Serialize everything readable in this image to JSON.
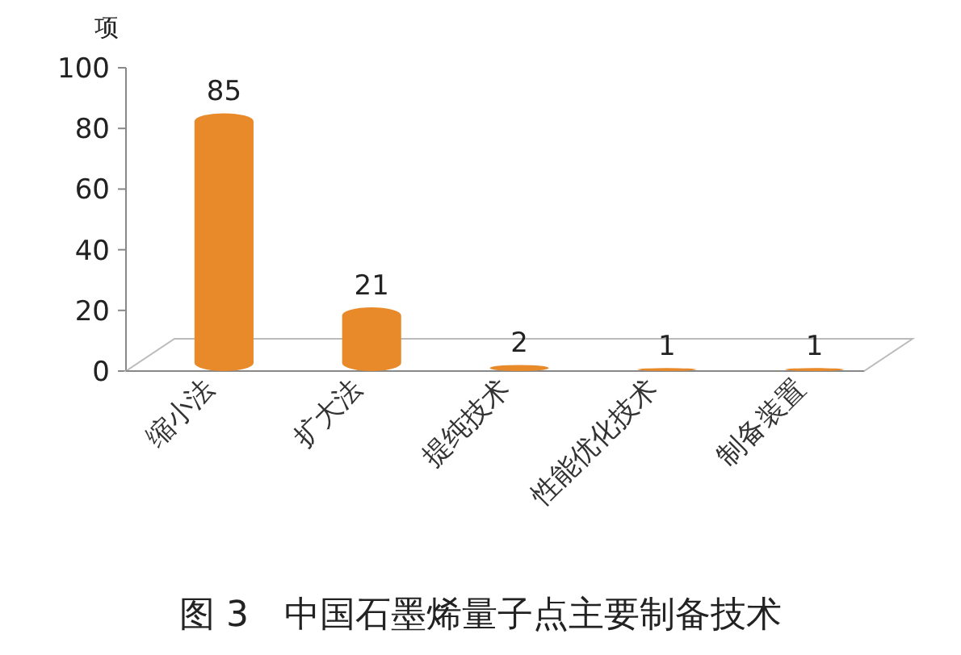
{
  "chart_data": {
    "type": "bar",
    "title": "图 3　中国石墨烯量子点主要制备技术",
    "ylabel": "项",
    "categories": [
      "缩小法",
      "扩大法",
      "提纯技术",
      "性能优化技术",
      "制备装置"
    ],
    "values": [
      85,
      21,
      2,
      1,
      1
    ],
    "color": "#e8892a",
    "data_labels": true,
    "ylim": [
      0,
      100
    ],
    "yticks": [
      0,
      20,
      40,
      60,
      80,
      100
    ],
    "grid": false
  }
}
